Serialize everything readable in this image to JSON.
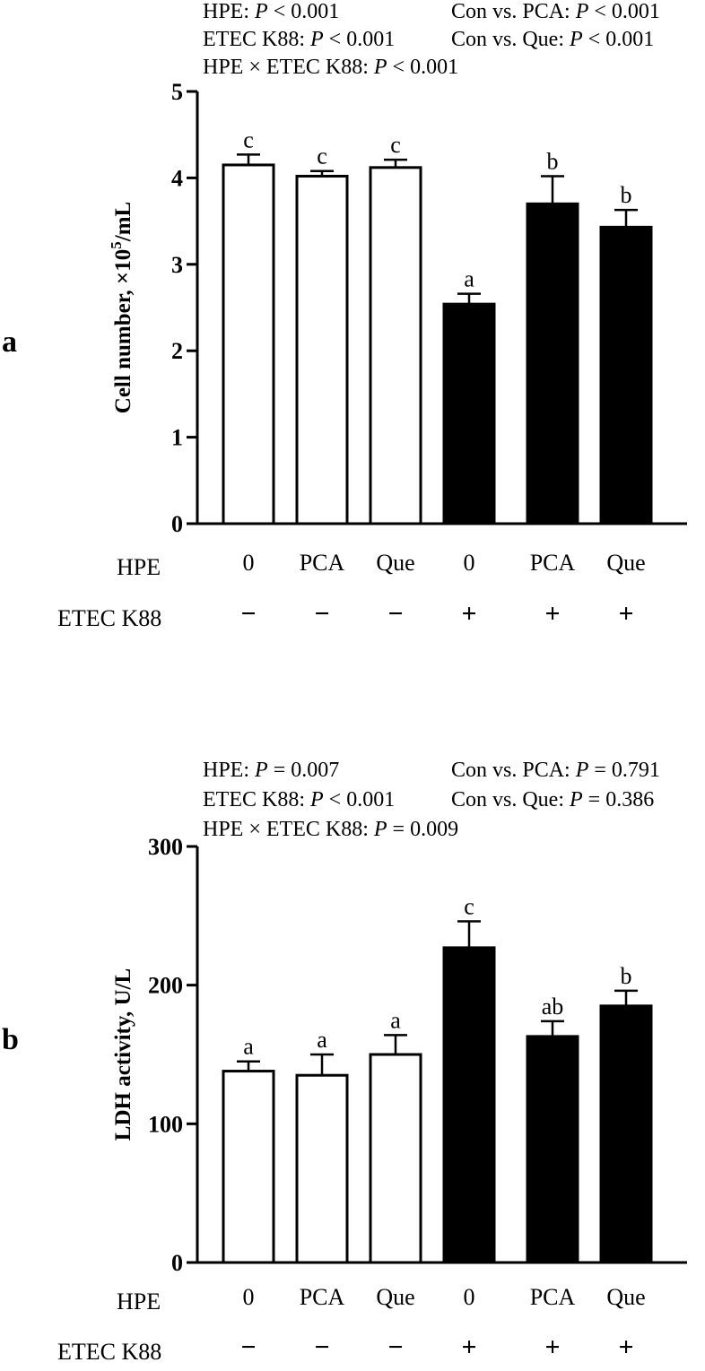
{
  "chart_data": [
    {
      "type": "bar",
      "panel_label": "a",
      "ylabel_main": "Cell number, ×10",
      "ylabel_sup": "5",
      "ylabel_tail": "/mL",
      "ylim": [
        0,
        5
      ],
      "yticks": [
        "0",
        "1",
        "2",
        "3",
        "4",
        "5"
      ],
      "categories": [
        "0",
        "PCA",
        "Que",
        "0",
        "PCA",
        "Que"
      ],
      "etec": [
        "−",
        "−",
        "−",
        "+",
        "+",
        "+"
      ],
      "values": [
        4.15,
        4.02,
        4.12,
        2.54,
        3.7,
        3.43
      ],
      "errors": [
        0.12,
        0.06,
        0.09,
        0.12,
        0.32,
        0.2
      ],
      "letters": [
        "c",
        "c",
        "c",
        "a",
        "b",
        "b"
      ],
      "fills": [
        "#ffffff",
        "#ffffff",
        "#ffffff",
        "#000000",
        "#000000",
        "#000000"
      ],
      "row_labels": {
        "hpe": "HPE",
        "etec": "ETEC K88"
      },
      "stats": [
        {
          "pre": "HPE: ",
          "p": "P",
          "post": " < 0.001"
        },
        {
          "pre": "Con vs. PCA: ",
          "p": "P",
          "post": "  < 0.001"
        },
        {
          "pre": "ETEC K88:  ",
          "p": "P",
          "post": " < 0.001"
        },
        {
          "pre": "Con vs. Que: ",
          "p": "P",
          "post": "  < 0.001"
        },
        {
          "pre": "HPE × ETEC K88: ",
          "p": "P",
          "post": "  < 0.001"
        }
      ]
    },
    {
      "type": "bar",
      "panel_label": "b",
      "ylabel_main": "LDH activity, U/L",
      "ylabel_sup": "",
      "ylabel_tail": "",
      "ylim": [
        0,
        300
      ],
      "yticks": [
        "0",
        "100",
        "200",
        "300"
      ],
      "categories": [
        "0",
        "PCA",
        "Que",
        "0",
        "PCA",
        "Que"
      ],
      "etec": [
        "−",
        "−",
        "−",
        "+",
        "+",
        "+"
      ],
      "values": [
        138,
        135,
        150,
        227,
        163,
        185
      ],
      "errors": [
        7,
        15,
        14,
        19,
        11,
        11
      ],
      "letters": [
        "a",
        "a",
        "a",
        "c",
        "ab",
        "b"
      ],
      "fills": [
        "#ffffff",
        "#ffffff",
        "#ffffff",
        "#000000",
        "#000000",
        "#000000"
      ],
      "row_labels": {
        "hpe": "HPE",
        "etec": "ETEC K88"
      },
      "stats": [
        {
          "pre": "HPE: ",
          "p": "P",
          "post": "  = 0.007"
        },
        {
          "pre": "Con vs. PCA: ",
          "p": "P",
          "post": "  = 0.791"
        },
        {
          "pre": "ETEC K88:  ",
          "p": "P",
          "post": " < 0.001"
        },
        {
          "pre": "Con vs. Que: ",
          "p": "P",
          "post": "  = 0.386"
        },
        {
          "pre": "HPE × ETEC K88: ",
          "p": "P",
          "post": "  = 0.009"
        }
      ]
    }
  ]
}
